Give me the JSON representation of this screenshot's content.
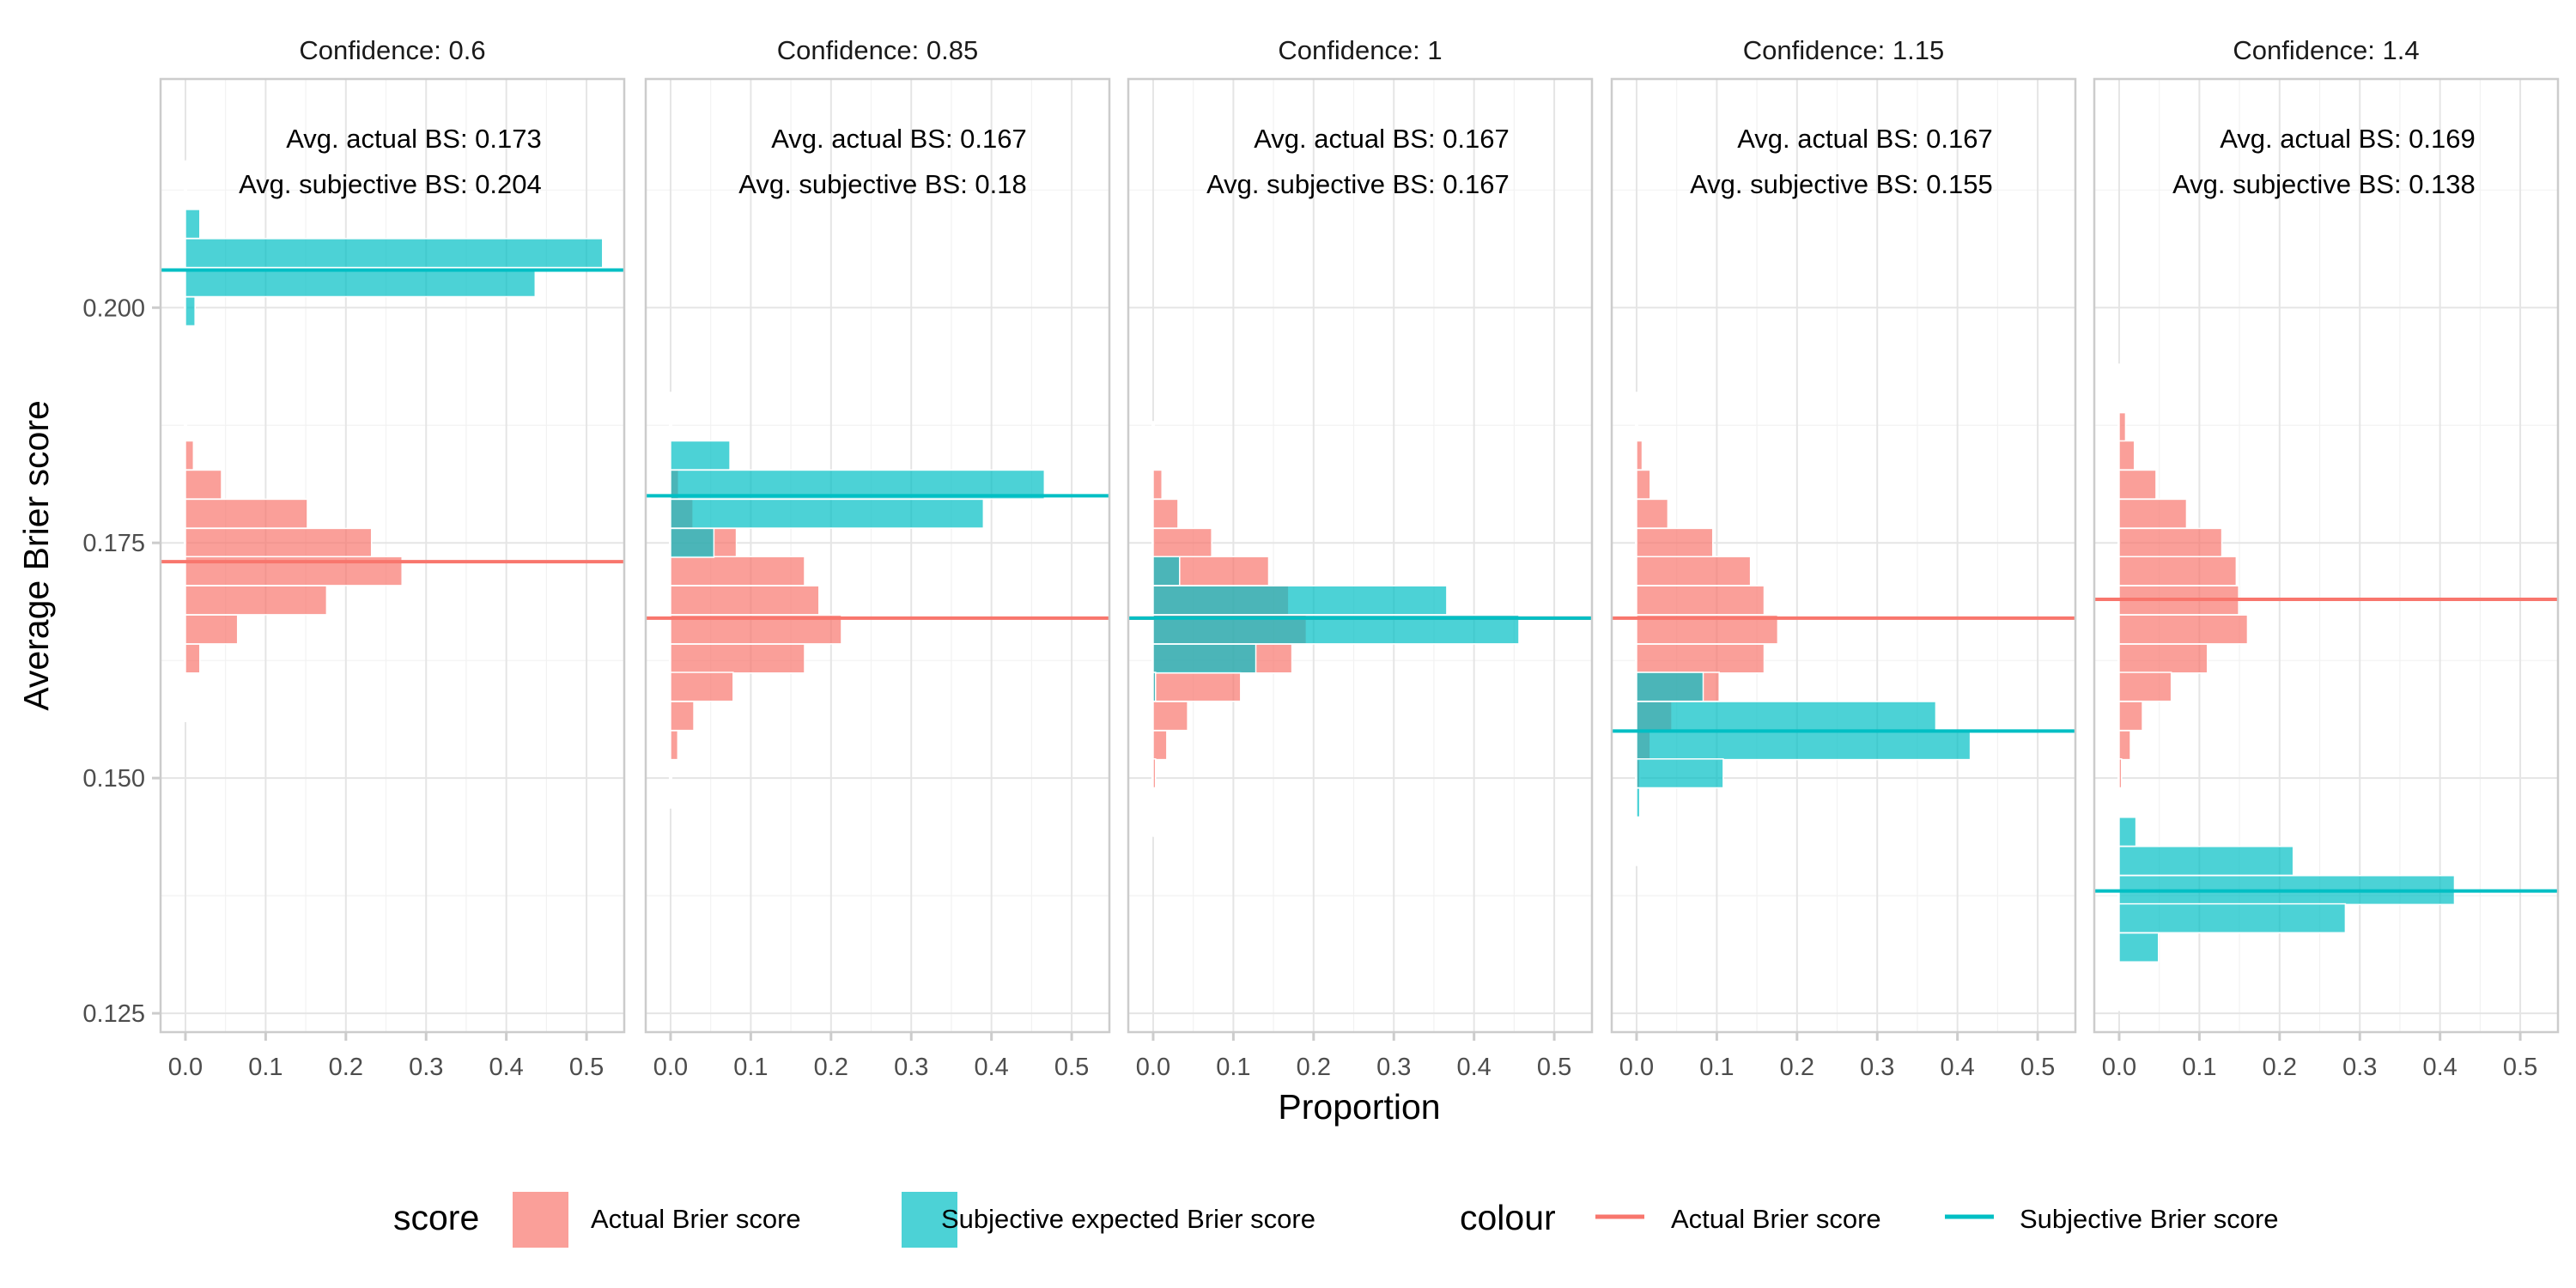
{
  "chart_data": {
    "type": "bar",
    "orientation": "horizontal-histogram",
    "facet_by": "Confidence",
    "xlabel": "Proportion",
    "ylabel": "Average Brier score",
    "xlim": [
      -0.031,
      0.547
    ],
    "ylim": [
      0.123,
      0.2243
    ],
    "x_ticks": [
      "0.0",
      "0.1",
      "0.2",
      "0.3",
      "0.4",
      "0.5"
    ],
    "x_tick_values": [
      0,
      0.1,
      0.2,
      0.3,
      0.4,
      0.5
    ],
    "y_ticks": [
      "0.125",
      "0.150",
      "0.175",
      "0.200"
    ],
    "y_tick_values": [
      0.125,
      0.15,
      0.175,
      0.2
    ],
    "bin_width": 0.00307,
    "grid": true,
    "colors": {
      "actual_fill": "#F8766D",
      "subjective_fill": "#00BFC4",
      "actual_line": "#F8766D",
      "subjective_line": "#00BFC4",
      "fill_opacity": 0.7
    },
    "panels": [
      {
        "strip": "Confidence: 0.6",
        "annot_actual": "Avg. actual BS: 0.173",
        "annot_subjective": "Avg. subjective BS: 0.204",
        "avg_actual": 0.173,
        "avg_subjective": 0.204,
        "actual": [
          [
            0.1843,
            0.01
          ],
          [
            0.1812,
            0.045
          ],
          [
            0.1781,
            0.152
          ],
          [
            0.175,
            0.232
          ],
          [
            0.172,
            0.27
          ],
          [
            0.1689,
            0.176
          ],
          [
            0.1658,
            0.065
          ],
          [
            0.1627,
            0.018
          ]
        ],
        "subjective": [
          [
            0.2089,
            0.018
          ],
          [
            0.2058,
            0.52
          ],
          [
            0.2027,
            0.436
          ],
          [
            0.1996,
            0.012
          ]
        ]
      },
      {
        "strip": "Confidence: 0.85",
        "annot_actual": "Avg. actual BS: 0.167",
        "annot_subjective": "Avg. subjective BS: 0.18",
        "avg_actual": 0.167,
        "avg_subjective": 0.18,
        "actual": [
          [
            0.1812,
            0.01
          ],
          [
            0.1781,
            0.028
          ],
          [
            0.175,
            0.082
          ],
          [
            0.172,
            0.167
          ],
          [
            0.1689,
            0.185
          ],
          [
            0.1658,
            0.213
          ],
          [
            0.1627,
            0.167
          ],
          [
            0.1597,
            0.078
          ],
          [
            0.1566,
            0.029
          ],
          [
            0.1535,
            0.009
          ]
        ],
        "subjective": [
          [
            0.1843,
            0.074
          ],
          [
            0.1812,
            0.466
          ],
          [
            0.1781,
            0.39
          ],
          [
            0.175,
            0.054
          ]
        ]
      },
      {
        "strip": "Confidence: 1",
        "annot_actual": "Avg. actual BS: 0.167",
        "annot_subjective": "Avg. subjective BS: 0.167",
        "avg_actual": 0.167,
        "avg_subjective": 0.167,
        "actual": [
          [
            0.1812,
            0.011
          ],
          [
            0.1781,
            0.031
          ],
          [
            0.175,
            0.073
          ],
          [
            0.172,
            0.144
          ],
          [
            0.1689,
            0.169
          ],
          [
            0.1658,
            0.191
          ],
          [
            0.1627,
            0.173
          ],
          [
            0.1597,
            0.109
          ],
          [
            0.1566,
            0.043
          ],
          [
            0.1535,
            0.017
          ],
          [
            0.1505,
            0.003
          ]
        ],
        "subjective": [
          [
            0.172,
            0.033
          ],
          [
            0.1689,
            0.366
          ],
          [
            0.1658,
            0.456
          ],
          [
            0.1627,
            0.128
          ],
          [
            0.1597,
            0.003
          ]
        ]
      },
      {
        "strip": "Confidence: 1.15",
        "annot_actual": "Avg. actual BS: 0.167",
        "annot_subjective": "Avg. subjective BS: 0.155",
        "avg_actual": 0.167,
        "avg_subjective": 0.155,
        "actual": [
          [
            0.1843,
            0.007
          ],
          [
            0.1812,
            0.017
          ],
          [
            0.1781,
            0.039
          ],
          [
            0.175,
            0.095
          ],
          [
            0.172,
            0.142
          ],
          [
            0.1689,
            0.159
          ],
          [
            0.1658,
            0.176
          ],
          [
            0.1627,
            0.159
          ],
          [
            0.1597,
            0.103
          ],
          [
            0.1566,
            0.044
          ],
          [
            0.1535,
            0.017
          ],
          [
            0.1505,
            0.004
          ]
        ],
        "subjective": [
          [
            0.1597,
            0.083
          ],
          [
            0.1566,
            0.373
          ],
          [
            0.1535,
            0.416
          ],
          [
            0.1505,
            0.108
          ],
          [
            0.1474,
            0.004
          ]
        ]
      },
      {
        "strip": "Confidence: 1.4",
        "annot_actual": "Avg. actual BS: 0.169",
        "annot_subjective": "Avg. subjective BS: 0.138",
        "avg_actual": 0.169,
        "avg_subjective": 0.138,
        "actual": [
          [
            0.1873,
            0.008
          ],
          [
            0.1843,
            0.019
          ],
          [
            0.1812,
            0.046
          ],
          [
            0.1781,
            0.084
          ],
          [
            0.175,
            0.128
          ],
          [
            0.172,
            0.146
          ],
          [
            0.1689,
            0.149
          ],
          [
            0.1658,
            0.16
          ],
          [
            0.1627,
            0.11
          ],
          [
            0.1597,
            0.065
          ],
          [
            0.1566,
            0.029
          ],
          [
            0.1535,
            0.014
          ],
          [
            0.1505,
            0.003
          ]
        ],
        "subjective": [
          [
            0.1443,
            0.021
          ],
          [
            0.1412,
            0.217
          ],
          [
            0.1381,
            0.418
          ],
          [
            0.1351,
            0.282
          ],
          [
            0.132,
            0.049
          ]
        ]
      }
    ],
    "legend": {
      "placement": "bottom",
      "fill_title": "score",
      "fill_entries": [
        "Actual Brier score",
        "Subjective expected Brier score"
      ],
      "colour_title": "colour",
      "colour_entries": [
        "Actual Brier score",
        "Subjective Brier score"
      ]
    }
  }
}
